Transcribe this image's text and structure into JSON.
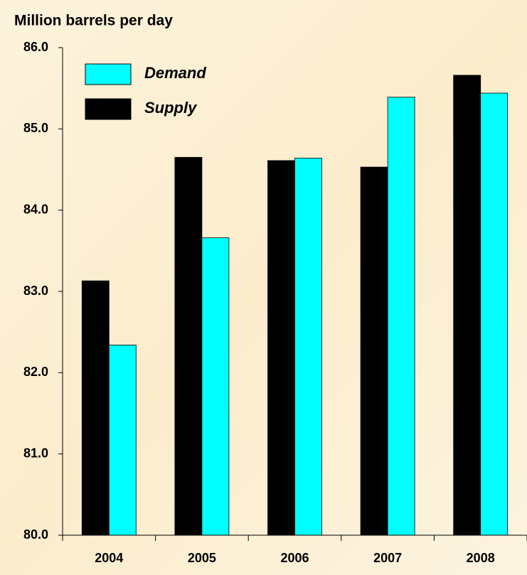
{
  "chart_data": {
    "type": "bar",
    "y_axis_label": "Million barrels per day",
    "categories": [
      "2004",
      "2005",
      "2006",
      "2007",
      "2008"
    ],
    "series": [
      {
        "name": "Supply",
        "color": "#000000",
        "values": [
          83.13,
          84.65,
          84.61,
          84.53,
          85.66
        ]
      },
      {
        "name": "Demand",
        "color": "#00ffff",
        "values": [
          82.34,
          83.66,
          84.64,
          85.39,
          85.44
        ]
      }
    ],
    "ylim": [
      80,
      86
    ],
    "yticks": [
      {
        "value": 80,
        "label": "80.0"
      },
      {
        "value": 81,
        "label": "81.0"
      },
      {
        "value": 82,
        "label": "82.0"
      },
      {
        "value": 83,
        "label": "83.0"
      },
      {
        "value": 84,
        "label": "84.0"
      },
      {
        "value": 85,
        "label": "85.0"
      },
      {
        "value": 86,
        "label": "86.0"
      }
    ],
    "legend": "upper left"
  }
}
